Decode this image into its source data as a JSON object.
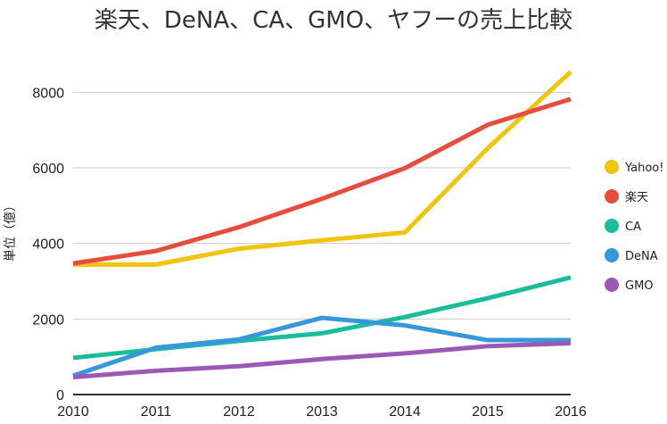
{
  "chart_data": {
    "type": "line",
    "title": "楽天、DeNA、CA、GMO、ヤフーの売上比較",
    "xlabel": "",
    "ylabel": "単位（億）",
    "x": [
      2010,
      2011,
      2012,
      2013,
      2014,
      2015,
      2016
    ],
    "x_tick_labels": [
      "2010",
      "2011",
      "2012",
      "2013",
      "2014",
      "2015",
      "2016"
    ],
    "ylim": [
      0,
      9000
    ],
    "y_ticks": [
      0,
      2000,
      4000,
      6000,
      8000
    ],
    "y_tick_labels": [
      "0",
      "2000",
      "4000",
      "6000",
      "8000"
    ],
    "grid": true,
    "legend_position": "right",
    "series": [
      {
        "name": "Yahoo!",
        "color": "#f1c40f",
        "values": [
          3440,
          3440,
          3860,
          4080,
          4290,
          6520,
          8540
        ]
      },
      {
        "name": "楽天",
        "color": "#e74c3c",
        "values": [
          3470,
          3800,
          4430,
          5180,
          5990,
          7140,
          7820
        ]
      },
      {
        "name": "CA",
        "color": "#1abc9c",
        "values": [
          970,
          1200,
          1420,
          1620,
          2050,
          2550,
          3100
        ]
      },
      {
        "name": "DeNA",
        "color": "#3498db",
        "values": [
          500,
          1240,
          1460,
          2030,
          1830,
          1440,
          1440
        ]
      },
      {
        "name": "GMO",
        "color": "#9b59b6",
        "values": [
          460,
          630,
          750,
          940,
          1090,
          1280,
          1360
        ]
      }
    ]
  }
}
